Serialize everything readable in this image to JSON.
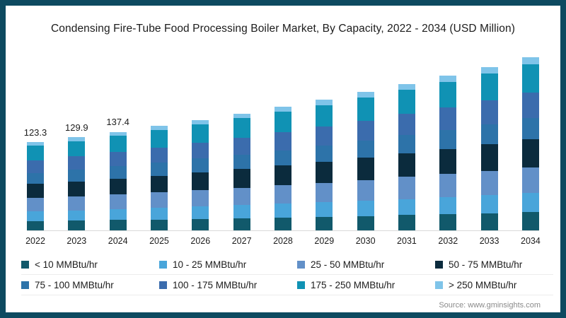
{
  "title": "Condensing Fire-Tube Food Processing Boiler Market, By Capacity, 2022 - 2034 (USD Million)",
  "source_note": "Source: www.gminsights.com",
  "frame": {
    "border_color": "#0d4a60",
    "background": "#ffffff"
  },
  "chart_data": {
    "type": "bar",
    "stacked": true,
    "grid": false,
    "legend_position": "bottom",
    "xlabel": "",
    "ylabel": "",
    "ylim": [
      0,
      250
    ],
    "categories": [
      "2022",
      "2023",
      "2024",
      "2025",
      "2026",
      "2027",
      "2028",
      "2029",
      "2030",
      "2031",
      "2032",
      "2033",
      "2034"
    ],
    "totals": [
      123.3,
      129.9,
      137.4,
      145.3,
      153.7,
      162.6,
      172.0,
      182.0,
      192.5,
      203.7,
      215.5,
      228.0,
      241.2
    ],
    "data_labels": {
      "2022": "123.3",
      "2023": "129.9",
      "2024": "137.4"
    },
    "series": [
      {
        "name": "< 10 MMBtu/hr",
        "color": "#11596b",
        "values": [
          12.9,
          13.6,
          14.4,
          15.3,
          16.1,
          17.1,
          18.1,
          19.1,
          20.2,
          21.4,
          22.6,
          23.9,
          25.3
        ]
      },
      {
        "name": "10 - 25 MMBtu/hr",
        "color": "#49a5da",
        "values": [
          13.6,
          14.3,
          15.1,
          16.0,
          16.9,
          17.9,
          18.9,
          20.0,
          21.2,
          22.4,
          23.7,
          25.1,
          26.5
        ]
      },
      {
        "name": "25 - 50 MMBtu/hr",
        "color": "#6290c8",
        "values": [
          18.5,
          19.5,
          20.6,
          21.8,
          23.1,
          24.4,
          25.8,
          27.3,
          28.9,
          30.6,
          32.3,
          34.2,
          36.2
        ]
      },
      {
        "name": "50 - 75 MMBtu/hr",
        "color": "#0b2b3d",
        "values": [
          19.7,
          20.8,
          22.0,
          23.2,
          24.6,
          26.0,
          27.5,
          29.1,
          30.8,
          32.6,
          34.5,
          36.5,
          38.6
        ]
      },
      {
        "name": "75 - 100 MMBtu/hr",
        "color": "#2d73a9",
        "values": [
          15.4,
          16.2,
          17.2,
          18.2,
          19.2,
          20.3,
          21.5,
          22.8,
          24.1,
          25.5,
          26.9,
          28.5,
          30.2
        ]
      },
      {
        "name": "100 - 175 MMBtu/hr",
        "color": "#3b6cad",
        "values": [
          17.9,
          18.8,
          19.9,
          21.1,
          22.3,
          23.6,
          24.9,
          26.4,
          27.9,
          29.5,
          31.2,
          33.1,
          35.0
        ]
      },
      {
        "name": "175 - 250 MMBtu/hr",
        "color": "#1092b4",
        "values": [
          20.3,
          21.4,
          22.7,
          24.0,
          25.4,
          26.8,
          28.4,
          30.0,
          31.8,
          33.6,
          35.6,
          37.6,
          39.8
        ]
      },
      {
        "name": "> 250 MMBtu/hr",
        "color": "#7fc4e9",
        "values": [
          4.9,
          5.2,
          5.5,
          5.8,
          6.1,
          6.5,
          6.9,
          7.3,
          7.7,
          8.1,
          8.6,
          9.1,
          9.6
        ]
      }
    ]
  }
}
